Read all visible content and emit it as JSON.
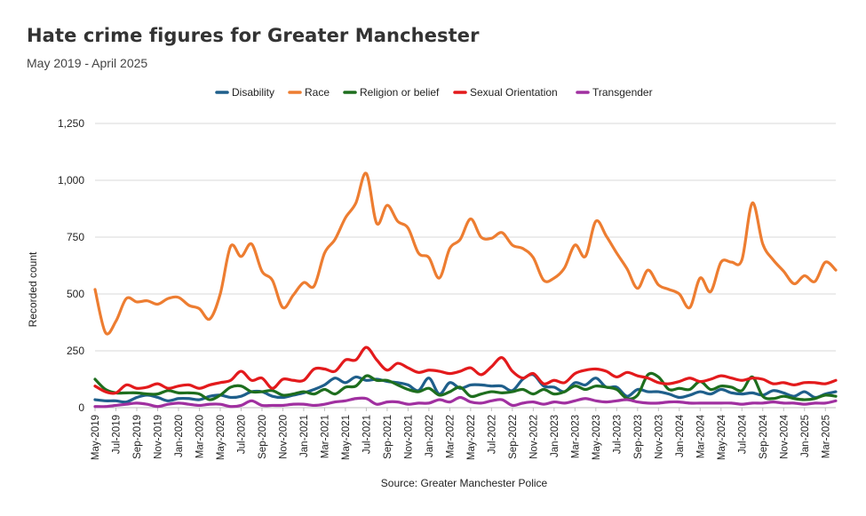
{
  "title": "Hate crime figures for Greater Manchester",
  "subtitle": "May 2019 - April 2025",
  "source": "Source: Greater Manchester Police",
  "chart_data": {
    "type": "line",
    "ylabel": "Recorded count",
    "ylim": [
      0,
      1250
    ],
    "yticks": [
      0,
      250,
      500,
      750,
      1000,
      1250
    ],
    "ytick_labels": [
      "0",
      "250",
      "500",
      "750",
      "1,000",
      "1,250"
    ],
    "grid": true,
    "legend_position": "top",
    "x": [
      "May-2019",
      "Jun-2019",
      "Jul-2019",
      "Aug-2019",
      "Sep-2019",
      "Oct-2019",
      "Nov-2019",
      "Dec-2019",
      "Jan-2020",
      "Feb-2020",
      "Mar-2020",
      "Apr-2020",
      "May-2020",
      "Jun-2020",
      "Jul-2020",
      "Aug-2020",
      "Sep-2020",
      "Oct-2020",
      "Nov-2020",
      "Dec-2020",
      "Jan-2021",
      "Feb-2021",
      "Mar-2021",
      "Apr-2021",
      "May-2021",
      "Jun-2021",
      "Jul-2021",
      "Aug-2021",
      "Sep-2021",
      "Oct-2021",
      "Nov-2021",
      "Dec-2021",
      "Jan-2022",
      "Feb-2022",
      "Mar-2022",
      "Apr-2022",
      "May-2022",
      "Jun-2022",
      "Jul-2022",
      "Aug-2022",
      "Sep-2022",
      "Oct-2022",
      "Nov-2022",
      "Dec-2022",
      "Jan-2023",
      "Feb-2023",
      "Mar-2023",
      "Apr-2023",
      "May-2023",
      "Jun-2023",
      "Jul-2023",
      "Aug-2023",
      "Sep-2023",
      "Oct-2023",
      "Nov-2023",
      "Dec-2023",
      "Jan-2024",
      "Feb-2024",
      "Mar-2024",
      "Apr-2024",
      "May-2024",
      "Jun-2024",
      "Jul-2024",
      "Aug-2024",
      "Sep-2024",
      "Oct-2024",
      "Nov-2024",
      "Dec-2024",
      "Jan-2025",
      "Feb-2025",
      "Mar-2025",
      "Apr-2025"
    ],
    "x_tick_labels": [
      "May-2019",
      "Jul-2019",
      "Sep-2019",
      "Nov-2019",
      "Jan-2020",
      "Mar-2020",
      "May-2020",
      "Jul-2020",
      "Sep-2020",
      "Nov-2020",
      "Jan-2021",
      "Mar-2021",
      "May-2021",
      "Jul-2021",
      "Sep-2021",
      "Nov-2021",
      "Jan-2022",
      "Mar-2022",
      "May-2022",
      "Jul-2022",
      "Sep-2022",
      "Nov-2022",
      "Jan-2023",
      "Mar-2023",
      "May-2023",
      "Jul-2023",
      "Sep-2023",
      "Nov-2023",
      "Jan-2024",
      "Mar-2024",
      "May-2024",
      "Jul-2024",
      "Sep-2024",
      "Nov-2024",
      "Jan-2025",
      "Mar-2025"
    ],
    "series": [
      {
        "name": "Disability",
        "color": "#1f5f8b",
        "values": [
          35,
          30,
          30,
          25,
          45,
          55,
          45,
          30,
          40,
          40,
          35,
          50,
          55,
          45,
          50,
          70,
          70,
          50,
          45,
          55,
          65,
          80,
          100,
          130,
          110,
          135,
          120,
          125,
          115,
          110,
          100,
          75,
          130,
          60,
          110,
          85,
          100,
          100,
          95,
          95,
          75,
          125,
          145,
          95,
          90,
          70,
          110,
          100,
          130,
          90,
          90,
          50,
          80,
          70,
          70,
          60,
          45,
          55,
          70,
          60,
          80,
          65,
          60,
          65,
          55,
          75,
          65,
          50,
          70,
          45,
          60,
          70
        ]
      },
      {
        "name": "Race",
        "color": "#ed7d31",
        "values": [
          520,
          330,
          380,
          480,
          465,
          470,
          455,
          480,
          485,
          450,
          435,
          390,
          500,
          710,
          665,
          720,
          600,
          560,
          440,
          495,
          550,
          535,
          680,
          740,
          835,
          900,
          1030,
          810,
          890,
          820,
          790,
          680,
          660,
          570,
          700,
          740,
          830,
          750,
          745,
          770,
          715,
          700,
          660,
          560,
          570,
          615,
          715,
          665,
          820,
          755,
          680,
          610,
          525,
          605,
          540,
          520,
          500,
          440,
          570,
          510,
          640,
          640,
          650,
          900,
          720,
          650,
          600,
          545,
          580,
          555,
          640,
          605
        ]
      },
      {
        "name": "Religion or belief",
        "color": "#1e6e1e",
        "values": [
          125,
          80,
          65,
          65,
          65,
          60,
          60,
          75,
          65,
          65,
          60,
          35,
          55,
          90,
          95,
          70,
          70,
          75,
          55,
          60,
          70,
          60,
          80,
          60,
          90,
          95,
          140,
          120,
          120,
          100,
          80,
          70,
          85,
          55,
          70,
          90,
          50,
          60,
          70,
          65,
          70,
          80,
          60,
          80,
          60,
          70,
          95,
          80,
          95,
          90,
          80,
          40,
          55,
          145,
          135,
          80,
          85,
          80,
          115,
          80,
          95,
          90,
          75,
          135,
          50,
          40,
          50,
          40,
          35,
          40,
          55,
          50
        ]
      },
      {
        "name": "Sexual Orientation",
        "color": "#e31a1c",
        "values": [
          95,
          70,
          65,
          100,
          85,
          90,
          105,
          85,
          95,
          100,
          85,
          100,
          110,
          120,
          160,
          120,
          130,
          85,
          125,
          120,
          120,
          170,
          170,
          160,
          210,
          210,
          265,
          210,
          165,
          195,
          175,
          155,
          165,
          160,
          150,
          160,
          175,
          145,
          180,
          220,
          160,
          130,
          150,
          105,
          120,
          110,
          150,
          165,
          170,
          160,
          135,
          155,
          140,
          130,
          110,
          105,
          115,
          130,
          115,
          125,
          140,
          130,
          120,
          130,
          125,
          105,
          110,
          100,
          110,
          110,
          105,
          120
        ]
      },
      {
        "name": "Transgender",
        "color": "#a030a0",
        "values": [
          5,
          5,
          10,
          15,
          20,
          15,
          5,
          15,
          20,
          15,
          10,
          15,
          15,
          5,
          10,
          30,
          10,
          10,
          10,
          15,
          15,
          10,
          15,
          25,
          30,
          40,
          40,
          15,
          25,
          25,
          15,
          20,
          20,
          35,
          25,
          45,
          25,
          20,
          30,
          35,
          10,
          20,
          25,
          15,
          25,
          20,
          30,
          40,
          30,
          25,
          30,
          35,
          25,
          20,
          20,
          25,
          25,
          20,
          20,
          20,
          20,
          20,
          15,
          20,
          20,
          25,
          20,
          20,
          15,
          20,
          20,
          30
        ]
      }
    ]
  }
}
